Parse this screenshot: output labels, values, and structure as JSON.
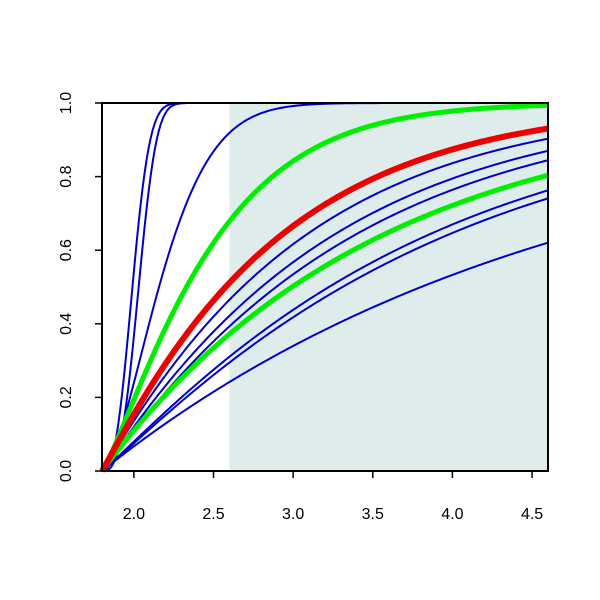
{
  "chart_data": {
    "type": "line",
    "title": "",
    "xlabel": "",
    "ylabel": "",
    "xlim": [
      1.8,
      4.6
    ],
    "ylim": [
      0.0,
      1.0
    ],
    "x_ticks": [
      2.0,
      2.5,
      3.0,
      3.5,
      4.0,
      4.5
    ],
    "x_tick_labels": [
      "2.0",
      "2.5",
      "3.0",
      "3.5",
      "4.0",
      "4.5"
    ],
    "y_ticks": [
      0.0,
      0.2,
      0.4,
      0.6,
      0.8,
      1.0
    ],
    "y_tick_labels": [
      "0.0",
      "0.2",
      "0.4",
      "0.6",
      "0.8",
      "1.0"
    ],
    "grid": false,
    "legend": "none",
    "shaded_region": {
      "x_from": 2.6,
      "x_to": 4.6,
      "color": "#deecec"
    },
    "colors": {
      "blue": "#0000cc",
      "green": "#00ee00",
      "red": "#ee0000",
      "axis": "#000000"
    },
    "curve_origin": 1.8,
    "series": [
      {
        "color": "blue",
        "width": 2,
        "scale": 0.22,
        "shape": 2.6
      },
      {
        "color": "blue",
        "width": 2,
        "scale": 0.26,
        "shape": 3.0
      },
      {
        "color": "blue",
        "width": 2,
        "scale": 0.45,
        "shape": 1.6
      },
      {
        "color": "green",
        "width": 5,
        "scale": 0.72,
        "shape": 1.2
      },
      {
        "color": "red",
        "width": 6,
        "scale": 1.1,
        "shape": 1.05
      },
      {
        "color": "blue",
        "width": 2,
        "scale": 1.25,
        "shape": 1.05
      },
      {
        "color": "blue",
        "width": 2,
        "scale": 1.42,
        "shape": 1.05
      },
      {
        "color": "blue",
        "width": 2,
        "scale": 1.55,
        "shape": 1.05
      },
      {
        "color": "green",
        "width": 5,
        "scale": 1.72,
        "shape": 1.0
      },
      {
        "color": "blue",
        "width": 2,
        "scale": 2.0,
        "shape": 1.08
      },
      {
        "color": "blue",
        "width": 2,
        "scale": 2.12,
        "shape": 1.08
      },
      {
        "color": "blue",
        "width": 2,
        "scale": 2.89,
        "shape": 1.0
      }
    ]
  }
}
